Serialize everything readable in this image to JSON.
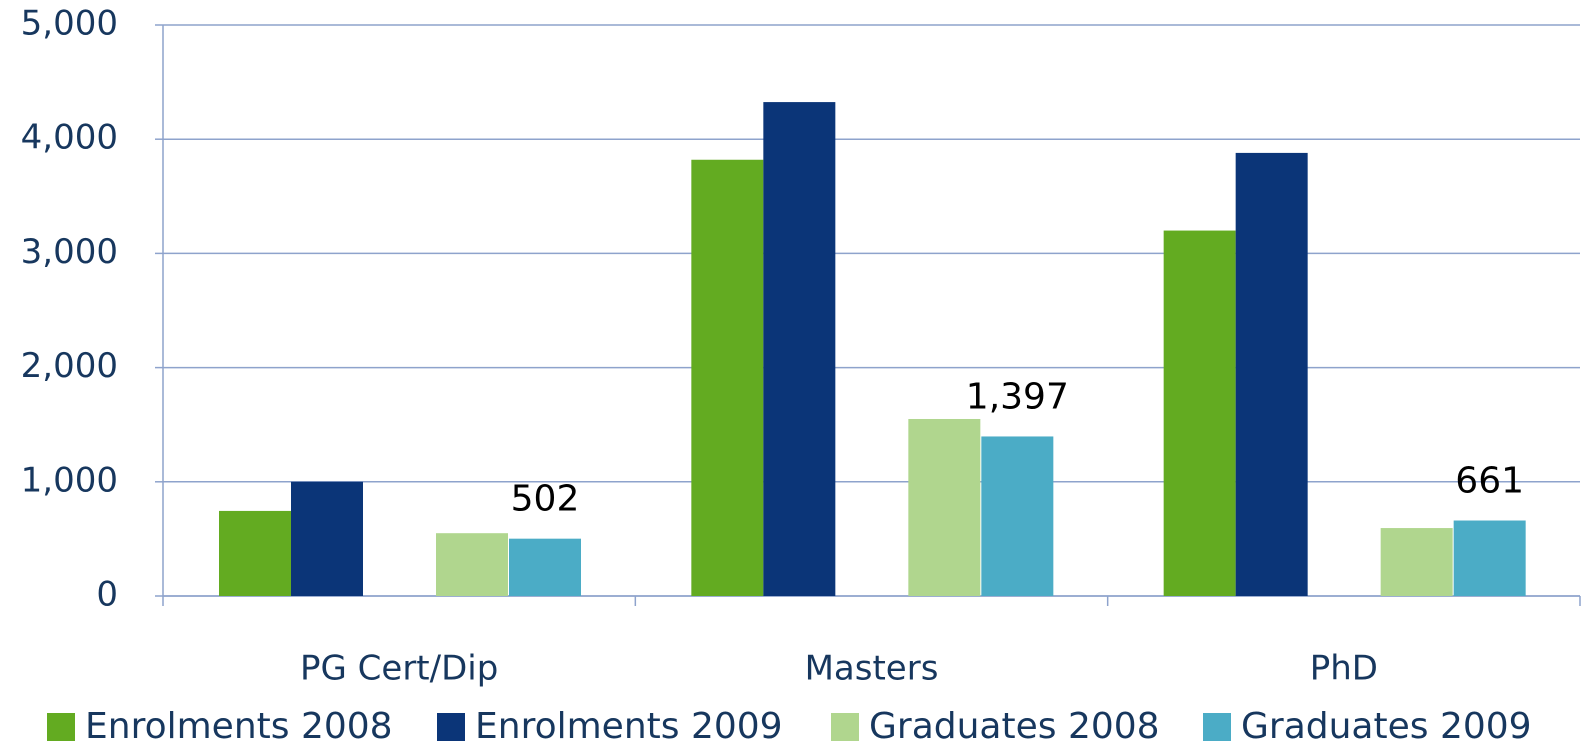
{
  "chart_data": {
    "type": "bar",
    "categories": [
      "PG Cert/Dip",
      "Masters",
      "PhD"
    ],
    "series": [
      {
        "name": "Enrolments 2008",
        "color": "#63ab21",
        "values": [
          745,
          3820,
          3200
        ]
      },
      {
        "name": "Enrolments 2009",
        "color": "#0b3578",
        "values": [
          1000,
          4325,
          3880
        ]
      },
      {
        "name": "Graduates 2008",
        "color": "#b0d68e",
        "values": [
          550,
          1550,
          595
        ]
      },
      {
        "name": "Graduates 2009",
        "color": "#4bacc6",
        "values": [
          502,
          1397,
          661
        ],
        "value_labels": [
          "502",
          "1,397",
          "661"
        ]
      }
    ],
    "ylim": [
      0,
      5000
    ],
    "yticks": [
      0,
      {
        "value": 1000,
        "label": "1,000"
      },
      {
        "value": 2000,
        "label": "2,000"
      },
      {
        "value": 3000,
        "label": "3,000"
      },
      {
        "value": 4000,
        "label": "4,000"
      },
      {
        "value": 5000,
        "label": "5,000"
      }
    ],
    "grid": true,
    "legend": "bottom"
  }
}
